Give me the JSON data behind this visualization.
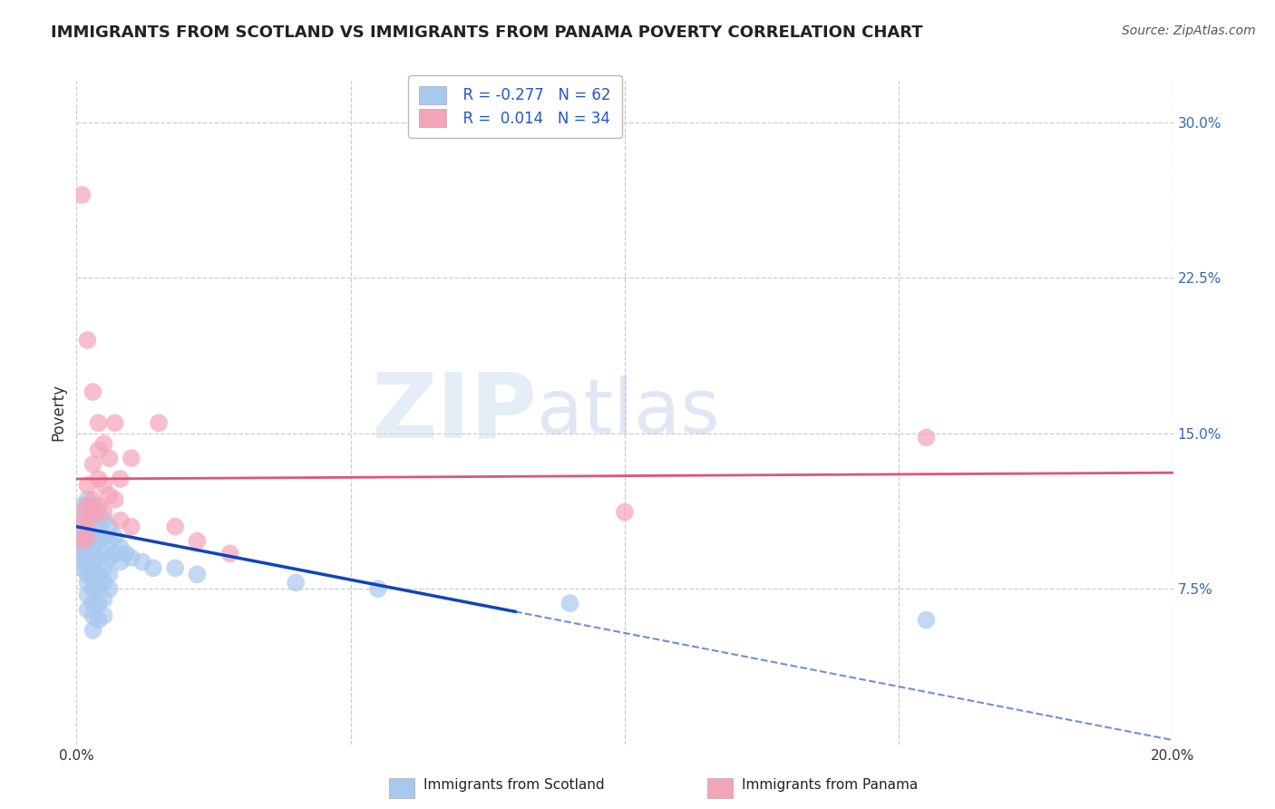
{
  "title": "IMMIGRANTS FROM SCOTLAND VS IMMIGRANTS FROM PANAMA POVERTY CORRELATION CHART",
  "source": "Source: ZipAtlas.com",
  "ylabel": "Poverty",
  "xlabel": "",
  "xlim": [
    0.0,
    0.2
  ],
  "ylim": [
    0.0,
    0.32
  ],
  "yticks": [
    0.075,
    0.15,
    0.225,
    0.3
  ],
  "ytick_labels": [
    "7.5%",
    "15.0%",
    "22.5%",
    "30.0%"
  ],
  "xticks": [
    0.0,
    0.05,
    0.1,
    0.15,
    0.2
  ],
  "xtick_labels": [
    "0.0%",
    "",
    "",
    "",
    "20.0%"
  ],
  "grid_color": "#cccccc",
  "background_color": "#ffffff",
  "legend_r1": "R = -0.277",
  "legend_n1": "N = 62",
  "legend_r2": "R =  0.014",
  "legend_n2": "N = 34",
  "scotland_color": "#a8c8ee",
  "panama_color": "#f4a4b8",
  "trendline_scotland_color": "#1144bb",
  "trendline_panama_color": "#dd5577",
  "watermark_zip": "ZIP",
  "watermark_atlas": "atlas",
  "scotland_points": [
    [
      0.001,
      0.115
    ],
    [
      0.001,
      0.108
    ],
    [
      0.001,
      0.102
    ],
    [
      0.001,
      0.098
    ],
    [
      0.001,
      0.095
    ],
    [
      0.001,
      0.092
    ],
    [
      0.001,
      0.088
    ],
    [
      0.001,
      0.085
    ],
    [
      0.002,
      0.118
    ],
    [
      0.002,
      0.112
    ],
    [
      0.002,
      0.105
    ],
    [
      0.002,
      0.098
    ],
    [
      0.002,
      0.092
    ],
    [
      0.002,
      0.088
    ],
    [
      0.002,
      0.082
    ],
    [
      0.002,
      0.078
    ],
    [
      0.002,
      0.072
    ],
    [
      0.002,
      0.065
    ],
    [
      0.003,
      0.115
    ],
    [
      0.003,
      0.108
    ],
    [
      0.003,
      0.1
    ],
    [
      0.003,
      0.095
    ],
    [
      0.003,
      0.088
    ],
    [
      0.003,
      0.082
    ],
    [
      0.003,
      0.075
    ],
    [
      0.003,
      0.068
    ],
    [
      0.003,
      0.062
    ],
    [
      0.003,
      0.055
    ],
    [
      0.004,
      0.112
    ],
    [
      0.004,
      0.105
    ],
    [
      0.004,
      0.098
    ],
    [
      0.004,
      0.09
    ],
    [
      0.004,
      0.082
    ],
    [
      0.004,
      0.075
    ],
    [
      0.004,
      0.068
    ],
    [
      0.004,
      0.06
    ],
    [
      0.005,
      0.108
    ],
    [
      0.005,
      0.1
    ],
    [
      0.005,
      0.092
    ],
    [
      0.005,
      0.085
    ],
    [
      0.005,
      0.078
    ],
    [
      0.005,
      0.07
    ],
    [
      0.005,
      0.062
    ],
    [
      0.006,
      0.105
    ],
    [
      0.006,
      0.098
    ],
    [
      0.006,
      0.09
    ],
    [
      0.006,
      0.082
    ],
    [
      0.006,
      0.075
    ],
    [
      0.007,
      0.1
    ],
    [
      0.007,
      0.092
    ],
    [
      0.008,
      0.095
    ],
    [
      0.008,
      0.088
    ],
    [
      0.009,
      0.092
    ],
    [
      0.01,
      0.09
    ],
    [
      0.012,
      0.088
    ],
    [
      0.014,
      0.085
    ],
    [
      0.018,
      0.085
    ],
    [
      0.022,
      0.082
    ],
    [
      0.04,
      0.078
    ],
    [
      0.055,
      0.075
    ],
    [
      0.09,
      0.068
    ],
    [
      0.155,
      0.06
    ]
  ],
  "panama_points": [
    [
      0.001,
      0.265
    ],
    [
      0.001,
      0.112
    ],
    [
      0.001,
      0.105
    ],
    [
      0.001,
      0.098
    ],
    [
      0.002,
      0.195
    ],
    [
      0.002,
      0.125
    ],
    [
      0.002,
      0.115
    ],
    [
      0.002,
      0.108
    ],
    [
      0.002,
      0.1
    ],
    [
      0.003,
      0.17
    ],
    [
      0.003,
      0.135
    ],
    [
      0.003,
      0.118
    ],
    [
      0.003,
      0.11
    ],
    [
      0.004,
      0.155
    ],
    [
      0.004,
      0.142
    ],
    [
      0.004,
      0.128
    ],
    [
      0.004,
      0.115
    ],
    [
      0.005,
      0.145
    ],
    [
      0.005,
      0.125
    ],
    [
      0.005,
      0.112
    ],
    [
      0.006,
      0.138
    ],
    [
      0.006,
      0.12
    ],
    [
      0.007,
      0.155
    ],
    [
      0.007,
      0.118
    ],
    [
      0.008,
      0.128
    ],
    [
      0.008,
      0.108
    ],
    [
      0.01,
      0.138
    ],
    [
      0.01,
      0.105
    ],
    [
      0.015,
      0.155
    ],
    [
      0.018,
      0.105
    ],
    [
      0.022,
      0.098
    ],
    [
      0.028,
      0.092
    ],
    [
      0.1,
      0.112
    ],
    [
      0.155,
      0.148
    ]
  ],
  "trendline_scotland": {
    "x_start": 0.0,
    "y_start": 0.105,
    "x_end": 0.08,
    "y_end": 0.064,
    "x_dash_end": 0.2,
    "y_dash_end": 0.002
  },
  "trendline_panama": {
    "x_start": 0.0,
    "y_start": 0.128,
    "x_end": 0.2,
    "y_end": 0.131
  }
}
